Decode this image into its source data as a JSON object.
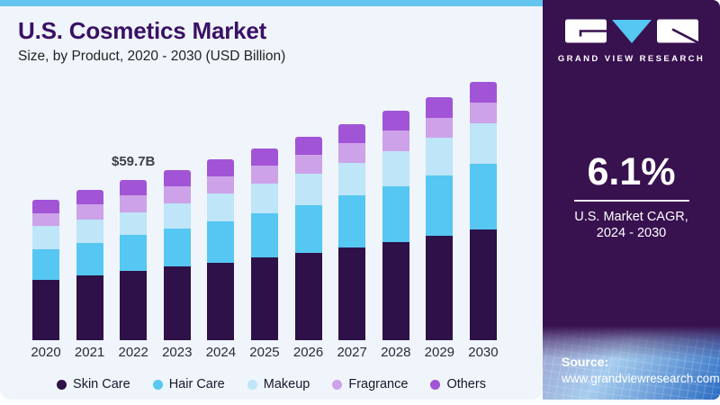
{
  "header": {
    "title": "U.S. Cosmetics Market",
    "subtitle": "Size, by Product, 2020 - 2030 (USD Billion)"
  },
  "chart_data": {
    "type": "bar",
    "stacked": true,
    "title": "U.S. Cosmetics Market Size, by Product, 2020 - 2030 (USD Billion)",
    "unit": "USD Billion",
    "categories": [
      "2020",
      "2021",
      "2022",
      "2023",
      "2024",
      "2025",
      "2026",
      "2027",
      "2028",
      "2029",
      "2030"
    ],
    "series": [
      {
        "name": "Skin Care",
        "color": "#2E1148",
        "values": [
          22.5,
          24.1,
          25.9,
          27.4,
          29.0,
          30.8,
          32.6,
          34.6,
          36.6,
          38.9,
          41.4
        ]
      },
      {
        "name": "Hair Care",
        "color": "#56C7F2",
        "values": [
          11.3,
          12.3,
          13.3,
          14.3,
          15.4,
          16.6,
          17.9,
          19.3,
          20.8,
          22.5,
          24.4
        ]
      },
      {
        "name": "Makeup",
        "color": "#BEE5F8",
        "values": [
          8.7,
          8.7,
          8.6,
          9.4,
          10.2,
          10.9,
          11.6,
          12.3,
          13.1,
          14.0,
          15.0
        ]
      },
      {
        "name": "Fragrance",
        "color": "#CDA2E9",
        "values": [
          4.8,
          5.5,
          6.2,
          6.4,
          6.6,
          6.8,
          7.1,
          7.3,
          7.6,
          7.7,
          7.8
        ]
      },
      {
        "name": "Others",
        "color": "#A254D6",
        "values": [
          5.2,
          5.6,
          5.7,
          6.0,
          6.3,
          6.5,
          6.8,
          7.1,
          7.4,
          7.6,
          7.8
        ]
      }
    ],
    "totals_estimated": [
      52.5,
      56.2,
      59.7,
      63.5,
      67.5,
      71.6,
      76.0,
      80.6,
      85.5,
      90.7,
      96.4
    ],
    "annotation": {
      "category": "2022",
      "text": "$59.7B"
    },
    "ylim": [
      0,
      100
    ],
    "grid": false,
    "y_axis_visible": false,
    "legend_position": "bottom"
  },
  "sidebar": {
    "brand_name": "GRAND VIEW RESEARCH",
    "stat": {
      "value": "6.1%",
      "label_line1": "U.S. Market CAGR,",
      "label_line2": "2024 - 2030"
    },
    "source": {
      "label": "Source:",
      "url": "www.grandviewresearch.com"
    }
  },
  "colors": {
    "accent_top_bar": "#64C5EF",
    "card_background": "#EFF5FA",
    "sidebar_background": "#38114F",
    "title_text": "#3A1166",
    "logo_triangle": "#56C7F2"
  }
}
